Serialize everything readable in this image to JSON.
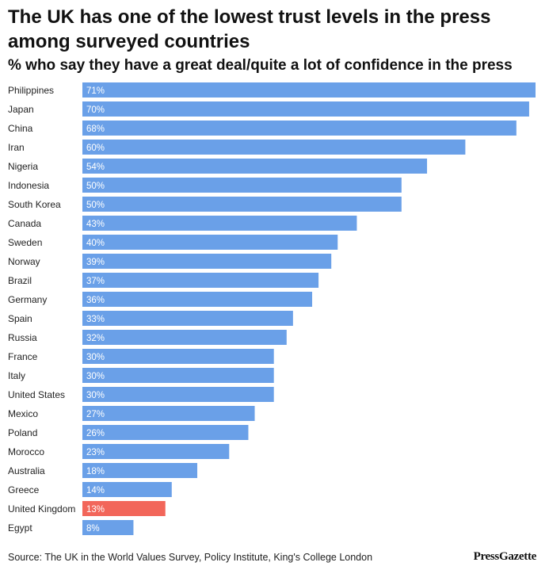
{
  "brand": "PressGazette",
  "source": "Source: The UK in the World Values Survey, Policy Institute, King's College London",
  "colors": {
    "default_bar": "#6aa0e8",
    "highlight_bar": "#f2665a"
  },
  "chart_data": {
    "type": "bar",
    "orientation": "horizontal",
    "title": "The UK has one of the lowest trust levels in the press among surveyed countries",
    "subtitle": "% who say they have a great deal/quite a lot of confidence in the press",
    "categories": [
      "Philippines",
      "Japan",
      "China",
      "Iran",
      "Nigeria",
      "Indonesia",
      "South Korea",
      "Canada",
      "Sweden",
      "Norway",
      "Brazil",
      "Germany",
      "Spain",
      "Russia",
      "France",
      "Italy",
      "United States",
      "Mexico",
      "Poland",
      "Morocco",
      "Australia",
      "Greece",
      "United Kingdom",
      "Egypt"
    ],
    "values": [
      71,
      70,
      68,
      60,
      54,
      50,
      50,
      43,
      40,
      39,
      37,
      36,
      33,
      32,
      30,
      30,
      30,
      27,
      26,
      23,
      18,
      14,
      13,
      8
    ],
    "value_labels": [
      "71%",
      "70%",
      "68%",
      "60%",
      "54%",
      "50%",
      "50%",
      "43%",
      "40%",
      "39%",
      "37%",
      "36%",
      "33%",
      "32%",
      "30%",
      "30%",
      "30%",
      "27%",
      "26%",
      "23%",
      "18%",
      "14%",
      "13%",
      "8%"
    ],
    "highlight": "United Kingdom",
    "xlim": [
      0,
      71
    ],
    "grid": false,
    "legend": "none"
  }
}
